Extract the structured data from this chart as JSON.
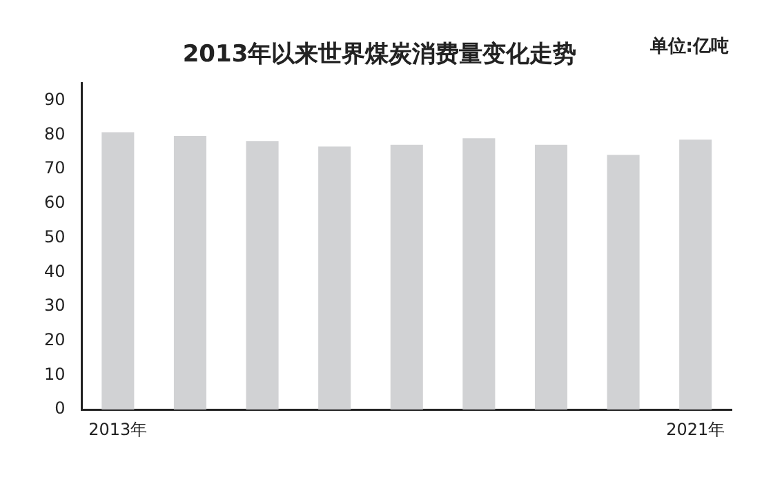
{
  "chart_data": {
    "type": "bar",
    "title": "2013年以来世界煤炭消费量变化走势",
    "annotations": [
      "单位:亿吨"
    ],
    "categories": [
      "2013年",
      null,
      null,
      null,
      null,
      null,
      null,
      null,
      "2021年"
    ],
    "values": [
      80.8,
      79.7,
      78.2,
      76.6,
      77.1,
      79.0,
      77.1,
      74.2,
      78.6
    ],
    "color": "#d1d2d4",
    "ylim": [
      0,
      95
    ],
    "yticks": [
      0,
      10,
      20,
      30,
      40,
      50,
      60,
      70,
      80,
      90
    ],
    "grid": false,
    "legend": false
  }
}
